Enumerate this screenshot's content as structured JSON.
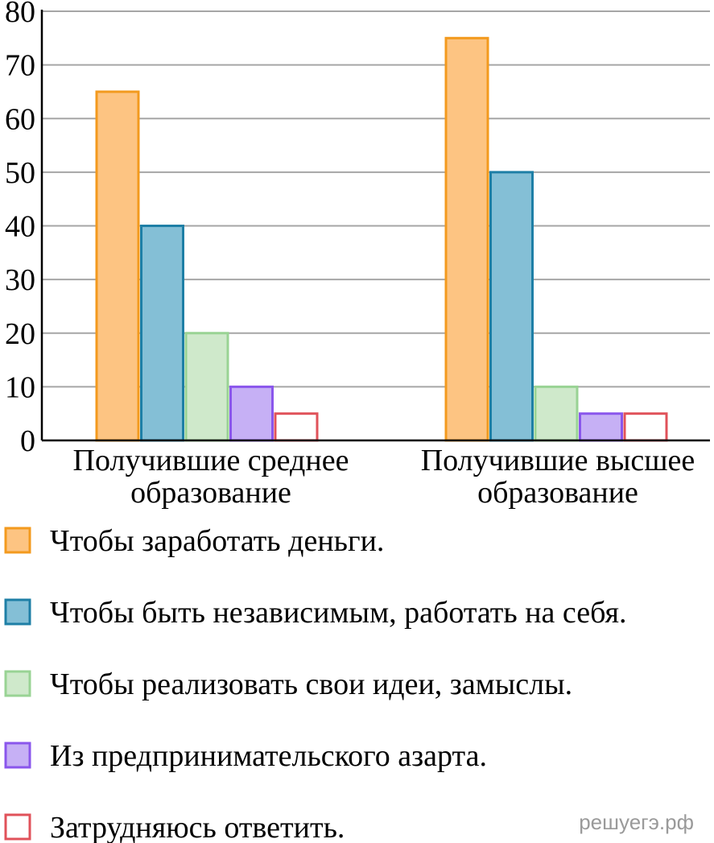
{
  "chart_data": {
    "type": "bar",
    "ylim": [
      0,
      80
    ],
    "yticks": [
      0,
      10,
      20,
      30,
      40,
      50,
      60,
      70,
      80
    ],
    "grid": true,
    "legend_position": "bottom",
    "categories": [
      [
        "Получившие среднее",
        "образование"
      ],
      [
        "Получившие высшее",
        "образование"
      ]
    ],
    "series": [
      {
        "name": "Чтобы заработать деньги.",
        "values": [
          65,
          75
        ],
        "fill": "#fdc482",
        "stroke": "#f39a1e"
      },
      {
        "name": "Чтобы быть независимым, работать на себя.",
        "values": [
          40,
          50
        ],
        "fill": "#84bfd6",
        "stroke": "#1e7fa6"
      },
      {
        "name": "Чтобы реализовать свои идеи, замыслы.",
        "values": [
          20,
          10
        ],
        "fill": "#cfe9cb",
        "stroke": "#99d394"
      },
      {
        "name": "Из предпринимательского азарта.",
        "values": [
          10,
          5
        ],
        "fill": "#c6b0f5",
        "stroke": "#8a56ec"
      },
      {
        "name": "Затрудняюсь ответить.",
        "values": [
          5,
          5
        ],
        "fill": "#ffffff",
        "stroke": "#e0525a"
      }
    ]
  },
  "watermark": "решуегэ.рф"
}
